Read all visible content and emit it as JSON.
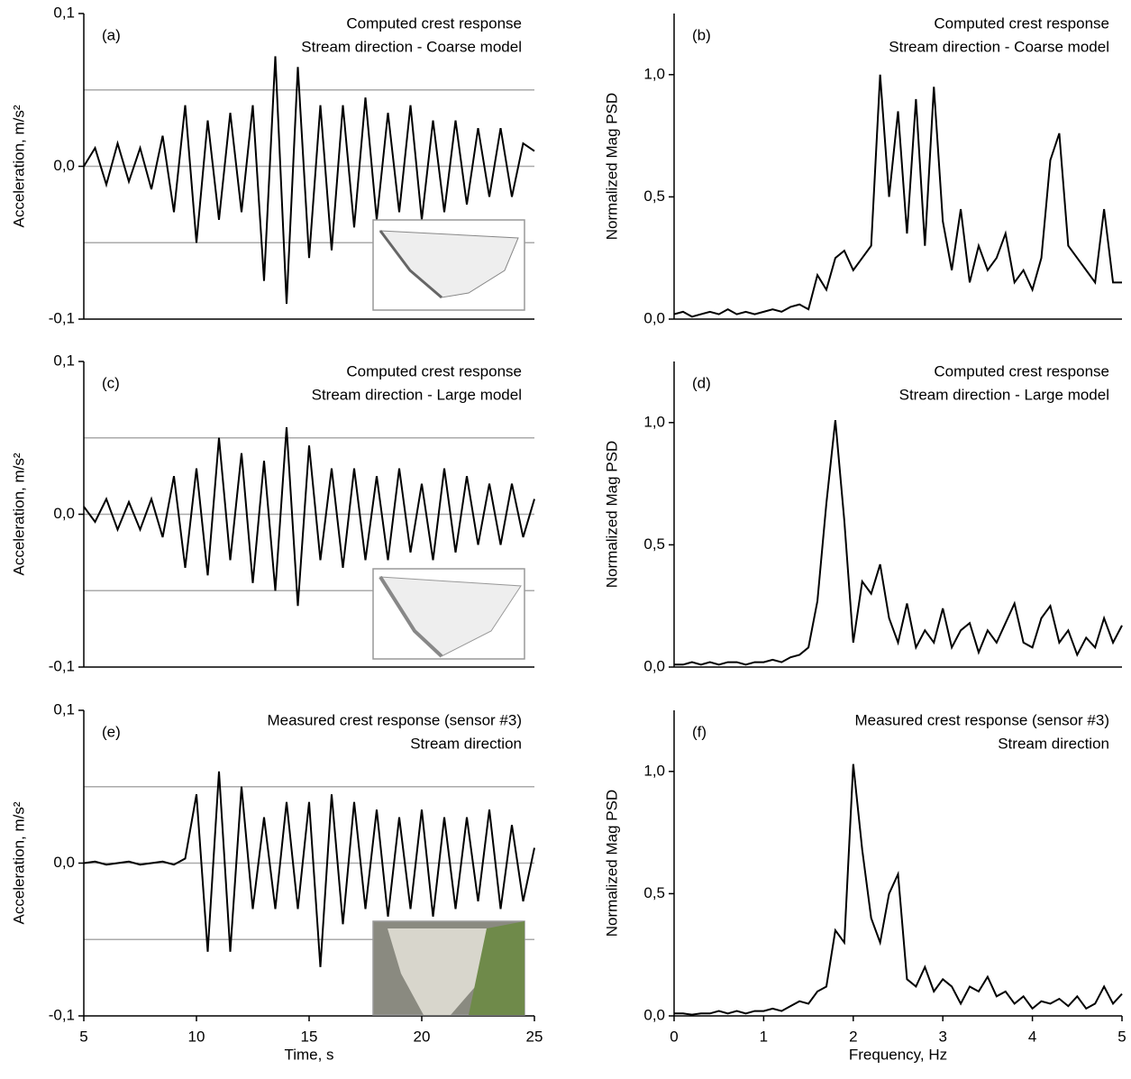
{
  "chart_data": [
    {
      "type": "line",
      "panel_label": "(a)",
      "annotation": [
        "Computed crest response",
        "Stream direction - Coarse model"
      ],
      "ylabel": "Acceleration, m/s²",
      "color": "#000000",
      "x": [
        5,
        5.5,
        6,
        6.5,
        7,
        7.5,
        8,
        8.5,
        9,
        9.5,
        10,
        10.5,
        11,
        11.5,
        12,
        12.5,
        13,
        13.5,
        14,
        14.5,
        15,
        15.5,
        16,
        16.5,
        17,
        17.5,
        18,
        18.5,
        19,
        19.5,
        20,
        20.5,
        21,
        21.5,
        22,
        22.5,
        23,
        23.5,
        24,
        24.5,
        25
      ],
      "values": [
        0,
        0.012,
        -0.012,
        0.015,
        -0.01,
        0.012,
        -0.015,
        0.02,
        -0.03,
        0.04,
        -0.05,
        0.03,
        -0.035,
        0.035,
        -0.03,
        0.04,
        -0.075,
        0.072,
        -0.09,
        0.065,
        -0.06,
        0.04,
        -0.055,
        0.04,
        -0.04,
        0.045,
        -0.035,
        0.035,
        -0.03,
        0.04,
        -0.035,
        0.03,
        -0.03,
        0.03,
        -0.025,
        0.025,
        -0.02,
        0.025,
        -0.02,
        0.015,
        0.01
      ],
      "xlim": [
        5,
        25
      ],
      "ylim": [
        -0.1,
        0.1
      ],
      "yticks": [
        {
          "value": -0.1,
          "label": "-0,1"
        },
        {
          "value": 0,
          "label": "0,0"
        },
        {
          "value": 0.1,
          "label": "0,1"
        }
      ],
      "hlines": [
        -0.05,
        0,
        0.05
      ]
    },
    {
      "type": "line",
      "panel_label": "(b)",
      "annotation": [
        "Computed crest response",
        "Stream direction - Coarse model"
      ],
      "ylabel": "Normalized Mag PSD",
      "color": "#000000",
      "x": [
        0,
        0.1,
        0.2,
        0.3,
        0.4,
        0.5,
        0.6,
        0.7,
        0.8,
        0.9,
        1,
        1.1,
        1.2,
        1.3,
        1.4,
        1.5,
        1.6,
        1.7,
        1.8,
        1.9,
        2,
        2.1,
        2.2,
        2.3,
        2.4,
        2.5,
        2.6,
        2.7,
        2.8,
        2.9,
        3,
        3.1,
        3.2,
        3.3,
        3.4,
        3.5,
        3.6,
        3.7,
        3.8,
        3.9,
        4,
        4.1,
        4.2,
        4.3,
        4.4,
        4.5,
        4.6,
        4.7,
        4.8,
        4.9,
        5
      ],
      "values": [
        0.02,
        0.03,
        0.01,
        0.02,
        0.03,
        0.02,
        0.04,
        0.02,
        0.03,
        0.02,
        0.03,
        0.04,
        0.03,
        0.05,
        0.06,
        0.04,
        0.18,
        0.12,
        0.25,
        0.28,
        0.2,
        0.25,
        0.3,
        1.0,
        0.5,
        0.85,
        0.35,
        0.9,
        0.3,
        0.95,
        0.4,
        0.2,
        0.45,
        0.15,
        0.3,
        0.2,
        0.25,
        0.35,
        0.15,
        0.2,
        0.12,
        0.25,
        0.65,
        0.76,
        0.3,
        0.25,
        0.2,
        0.15,
        0.45,
        0.15,
        0.15
      ],
      "xlim": [
        0,
        5
      ],
      "ylim": [
        0,
        1.25
      ],
      "yticks": [
        {
          "value": 0,
          "label": "0,0"
        },
        {
          "value": 0.5,
          "label": "0,5"
        },
        {
          "value": 1,
          "label": "1,0"
        }
      ]
    },
    {
      "type": "line",
      "panel_label": "(c)",
      "annotation": [
        "Computed crest response",
        "Stream direction - Large model"
      ],
      "ylabel": "Acceleration, m/s²",
      "color": "#000000",
      "x": [
        5,
        5.5,
        6,
        6.5,
        7,
        7.5,
        8,
        8.5,
        9,
        9.5,
        10,
        10.5,
        11,
        11.5,
        12,
        12.5,
        13,
        13.5,
        14,
        14.5,
        15,
        15.5,
        16,
        16.5,
        17,
        17.5,
        18,
        18.5,
        19,
        19.5,
        20,
        20.5,
        21,
        21.5,
        22,
        22.5,
        23,
        23.5,
        24,
        24.5,
        25
      ],
      "values": [
        0.005,
        -0.005,
        0.01,
        -0.01,
        0.008,
        -0.01,
        0.01,
        -0.015,
        0.025,
        -0.035,
        0.03,
        -0.04,
        0.05,
        -0.03,
        0.04,
        -0.045,
        0.035,
        -0.05,
        0.057,
        -0.06,
        0.045,
        -0.03,
        0.03,
        -0.035,
        0.03,
        -0.03,
        0.025,
        -0.03,
        0.03,
        -0.025,
        0.02,
        -0.03,
        0.03,
        -0.025,
        0.025,
        -0.02,
        0.02,
        -0.02,
        0.02,
        -0.015,
        0.01
      ],
      "xlim": [
        5,
        25
      ],
      "ylim": [
        -0.1,
        0.1
      ],
      "yticks": [
        {
          "value": -0.1,
          "label": "-0,1"
        },
        {
          "value": 0,
          "label": "0,0"
        },
        {
          "value": 0.1,
          "label": "0,1"
        }
      ],
      "hlines": [
        -0.05,
        0,
        0.05
      ]
    },
    {
      "type": "line",
      "panel_label": "(d)",
      "annotation": [
        "Computed  crest response",
        "Stream direction - Large model"
      ],
      "ylabel": "Normalized  Mag PSD",
      "color": "#000000",
      "x": [
        0,
        0.1,
        0.2,
        0.3,
        0.4,
        0.5,
        0.6,
        0.7,
        0.8,
        0.9,
        1,
        1.1,
        1.2,
        1.3,
        1.4,
        1.5,
        1.6,
        1.7,
        1.8,
        1.9,
        2,
        2.1,
        2.2,
        2.3,
        2.4,
        2.5,
        2.6,
        2.7,
        2.8,
        2.9,
        3,
        3.1,
        3.2,
        3.3,
        3.4,
        3.5,
        3.6,
        3.7,
        3.8,
        3.9,
        4,
        4.1,
        4.2,
        4.3,
        4.4,
        4.5,
        4.6,
        4.7,
        4.8,
        4.9,
        5
      ],
      "values": [
        0.01,
        0.01,
        0.02,
        0.01,
        0.02,
        0.01,
        0.02,
        0.02,
        0.01,
        0.02,
        0.02,
        0.03,
        0.02,
        0.04,
        0.05,
        0.08,
        0.27,
        0.67,
        1.01,
        0.6,
        0.1,
        0.35,
        0.3,
        0.42,
        0.2,
        0.1,
        0.26,
        0.08,
        0.15,
        0.1,
        0.24,
        0.08,
        0.15,
        0.18,
        0.06,
        0.15,
        0.1,
        0.18,
        0.26,
        0.1,
        0.08,
        0.2,
        0.25,
        0.1,
        0.15,
        0.05,
        0.12,
        0.08,
        0.2,
        0.1,
        0.17
      ],
      "xlim": [
        0,
        5
      ],
      "ylim": [
        0,
        1.25
      ],
      "yticks": [
        {
          "value": 0,
          "label": "0,0"
        },
        {
          "value": 0.5,
          "label": "0,5"
        },
        {
          "value": 1,
          "label": "1,0"
        }
      ]
    },
    {
      "type": "line",
      "panel_label": "(e)",
      "annotation": [
        "Measured crest response (sensor #3)",
        "Stream direction"
      ],
      "ylabel": "Acceleration, m/s²",
      "xlabel": "Time, s",
      "color": "#000000",
      "x": [
        5,
        5.5,
        6,
        6.5,
        7,
        7.5,
        8,
        8.5,
        9,
        9.5,
        10,
        10.5,
        11,
        11.5,
        12,
        12.5,
        13,
        13.5,
        14,
        14.5,
        15,
        15.5,
        16,
        16.5,
        17,
        17.5,
        18,
        18.5,
        19,
        19.5,
        20,
        20.5,
        21,
        21.5,
        22,
        22.5,
        23,
        23.5,
        24,
        24.5,
        25
      ],
      "values": [
        0,
        0.001,
        -0.001,
        0,
        0.001,
        -0.001,
        0,
        0.001,
        -0.001,
        0.003,
        0.045,
        -0.058,
        0.06,
        -0.058,
        0.05,
        -0.03,
        0.03,
        -0.03,
        0.04,
        -0.03,
        0.04,
        -0.068,
        0.045,
        -0.04,
        0.04,
        -0.03,
        0.035,
        -0.035,
        0.03,
        -0.03,
        0.035,
        -0.035,
        0.03,
        -0.03,
        0.03,
        -0.025,
        0.035,
        -0.03,
        0.025,
        -0.025,
        0.01
      ],
      "xlim": [
        5,
        25
      ],
      "ylim": [
        -0.1,
        0.1
      ],
      "xticks": [
        5,
        10,
        15,
        20,
        25
      ],
      "yticks": [
        {
          "value": -0.1,
          "label": "-0,1"
        },
        {
          "value": 0,
          "label": "0,0"
        },
        {
          "value": 0.1,
          "label": "0,1"
        }
      ],
      "hlines": [
        -0.05,
        0,
        0.05
      ]
    },
    {
      "type": "line",
      "panel_label": "(f)",
      "annotation": [
        "Measured crest response (sensor #3)",
        "Stream direction"
      ],
      "ylabel": "Normalized Mag PSD",
      "xlabel": "Frequency, Hz",
      "color": "#000000",
      "x": [
        0,
        0.1,
        0.2,
        0.3,
        0.4,
        0.5,
        0.6,
        0.7,
        0.8,
        0.9,
        1,
        1.1,
        1.2,
        1.3,
        1.4,
        1.5,
        1.6,
        1.7,
        1.8,
        1.9,
        2,
        2.1,
        2.2,
        2.3,
        2.4,
        2.5,
        2.6,
        2.7,
        2.8,
        2.9,
        3,
        3.1,
        3.2,
        3.3,
        3.4,
        3.5,
        3.6,
        3.7,
        3.8,
        3.9,
        4,
        4.1,
        4.2,
        4.3,
        4.4,
        4.5,
        4.6,
        4.7,
        4.8,
        4.9,
        5
      ],
      "values": [
        0.01,
        0.01,
        0.005,
        0.01,
        0.01,
        0.02,
        0.01,
        0.02,
        0.01,
        0.02,
        0.02,
        0.03,
        0.02,
        0.04,
        0.06,
        0.05,
        0.1,
        0.12,
        0.35,
        0.3,
        1.03,
        0.68,
        0.4,
        0.3,
        0.5,
        0.58,
        0.15,
        0.12,
        0.2,
        0.1,
        0.15,
        0.12,
        0.05,
        0.12,
        0.1,
        0.16,
        0.08,
        0.1,
        0.05,
        0.08,
        0.03,
        0.06,
        0.05,
        0.07,
        0.04,
        0.08,
        0.03,
        0.05,
        0.12,
        0.05,
        0.09
      ],
      "xlim": [
        0,
        5
      ],
      "ylim": [
        0,
        1.25
      ],
      "xticks": [
        0,
        1,
        2,
        3,
        4,
        5
      ],
      "yticks": [
        {
          "value": 0,
          "label": "0,0"
        },
        {
          "value": 0.5,
          "label": "0,5"
        },
        {
          "value": 1,
          "label": "1,0"
        }
      ]
    }
  ]
}
